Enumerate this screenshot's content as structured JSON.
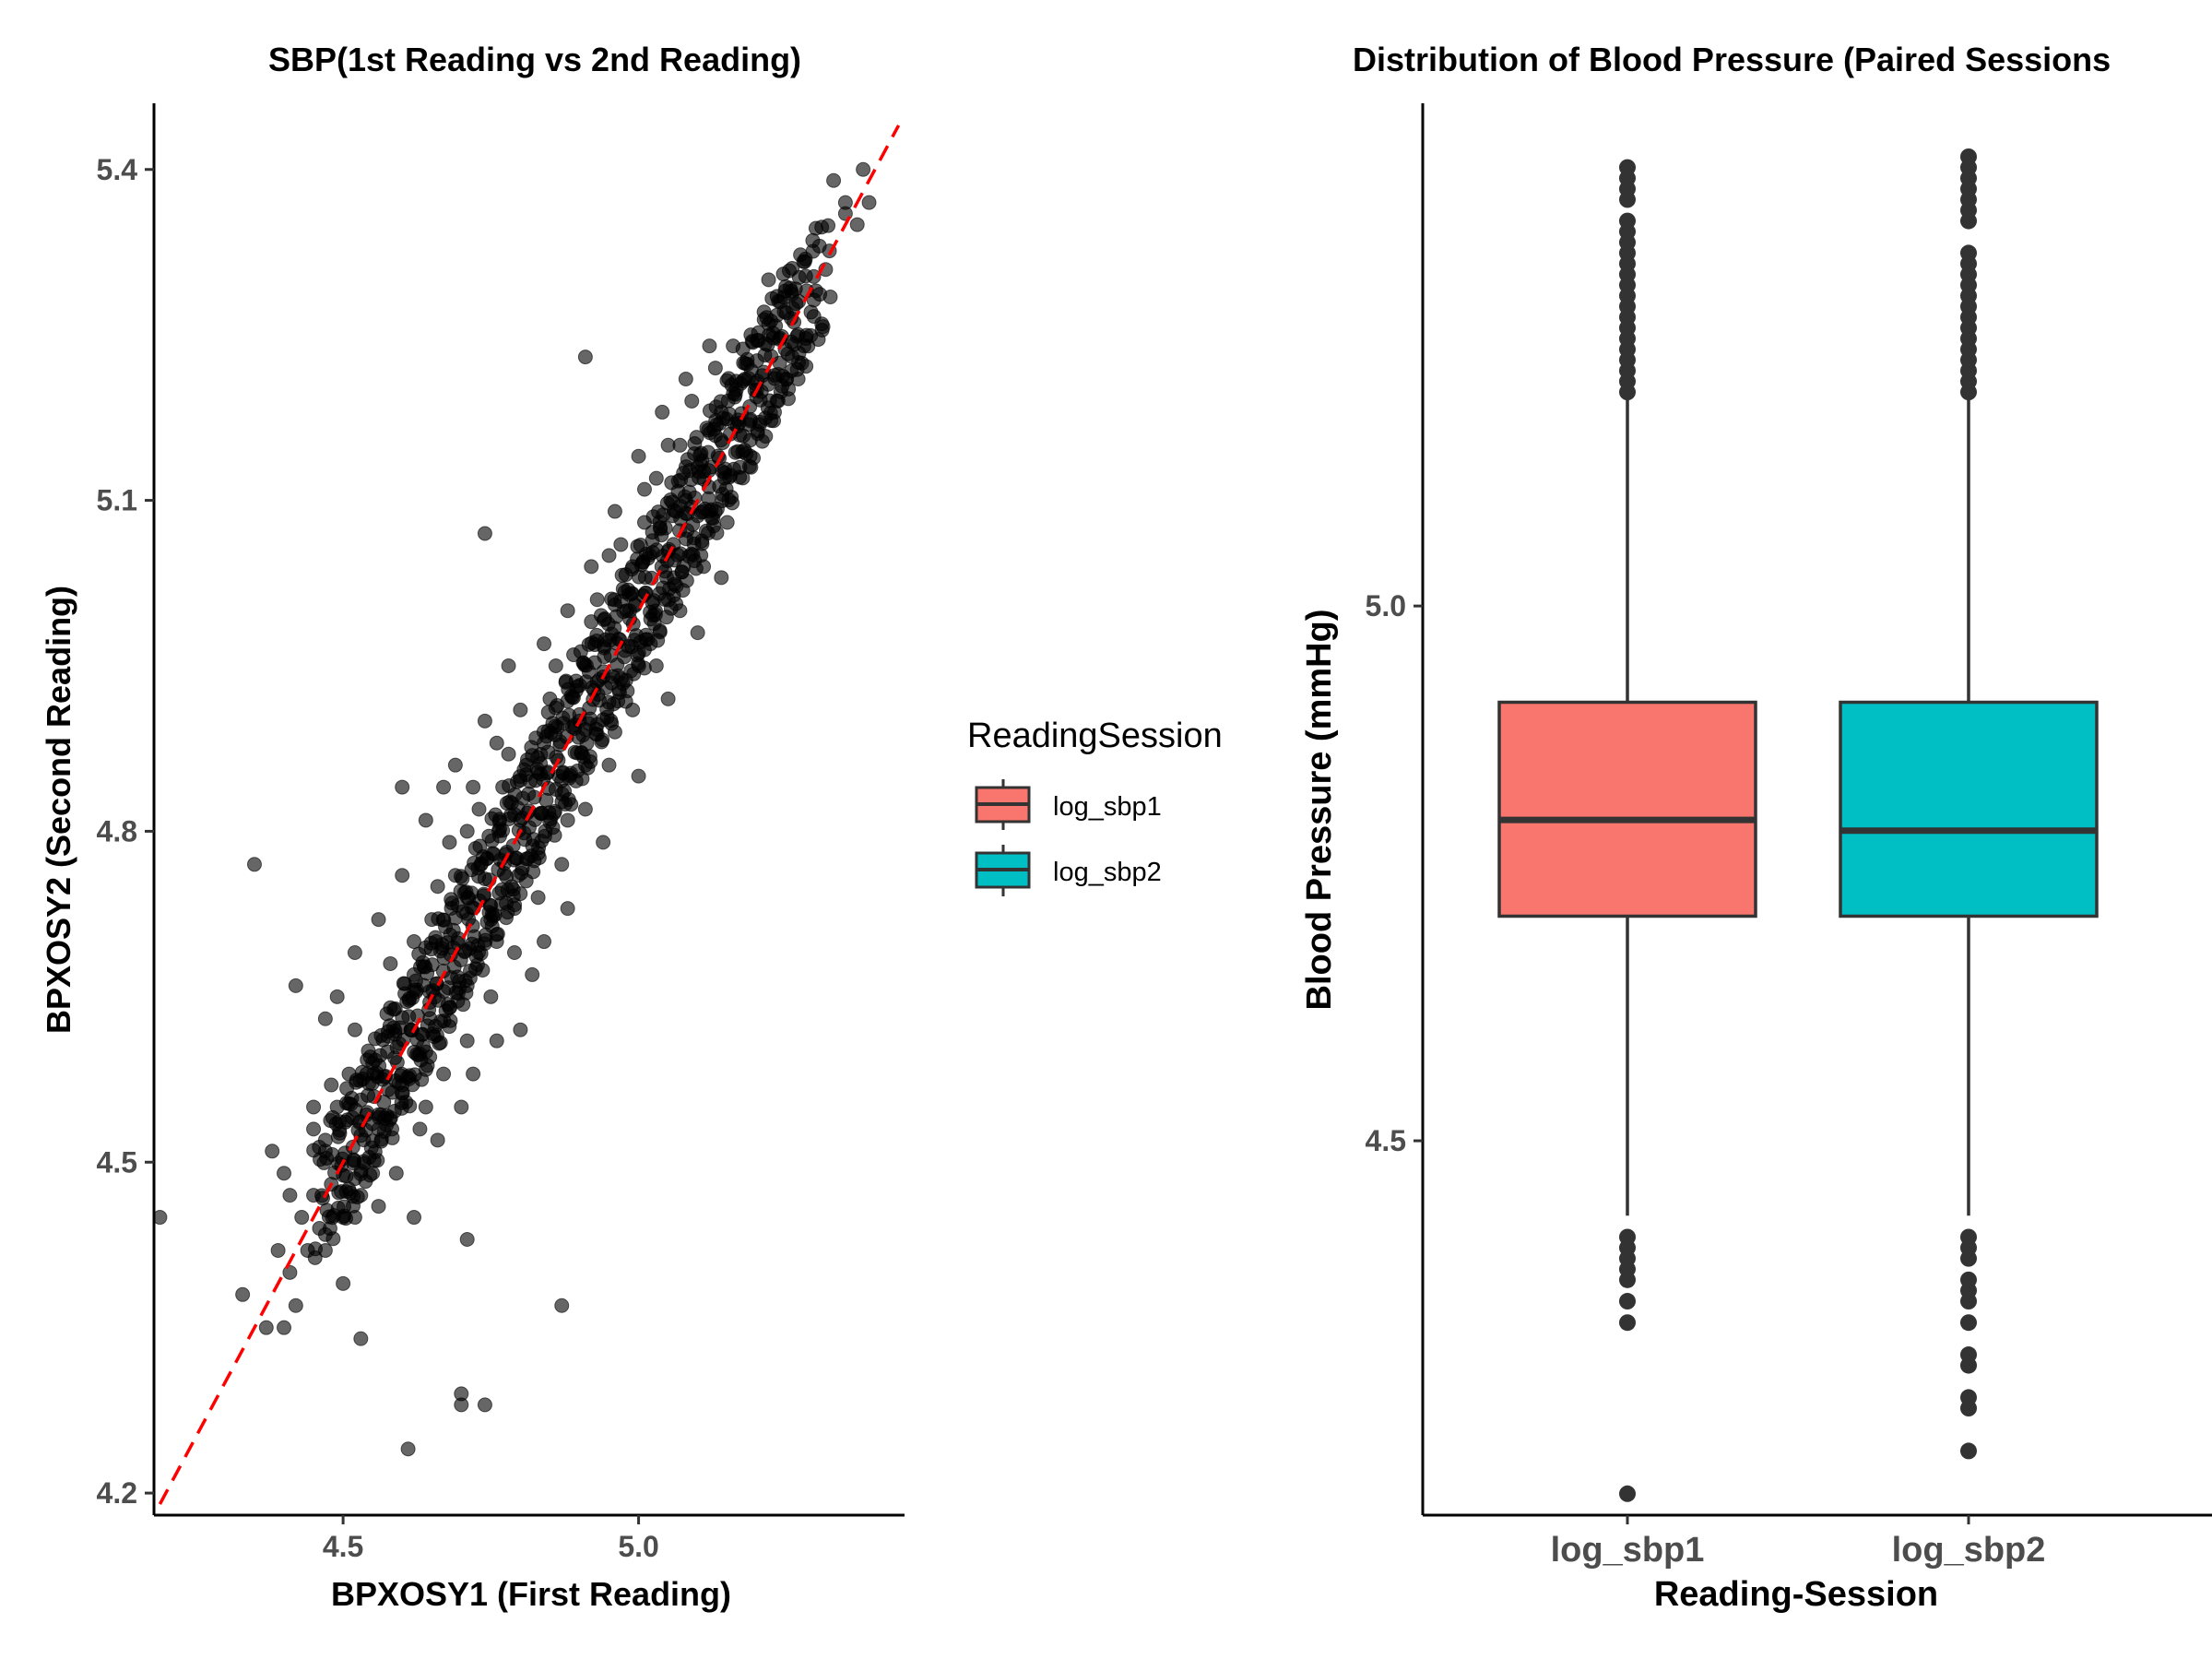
{
  "chart_data": [
    {
      "type": "scatter",
      "title": "SBP(1st Reading vs 2nd Reading)",
      "xlabel": "BPXOSY1 (First Reading)",
      "ylabel": "BPXOSY2 (Second Reading)",
      "xlim": [
        4.18,
        5.45
      ],
      "ylim": [
        4.18,
        5.46
      ],
      "x_ticks": [
        4.5,
        5.0
      ],
      "x_tick_labels": [
        "4.5",
        "5.0"
      ],
      "y_ticks": [
        4.2,
        4.5,
        4.8,
        5.1,
        5.4
      ],
      "y_tick_labels": [
        "4.2",
        "4.5",
        "4.8",
        "5.1",
        "5.4"
      ],
      "grid": false,
      "reference_line": {
        "style": "dashed",
        "color": "#ff0000",
        "slope": 1,
        "intercept": 0
      },
      "point_color": "#000000",
      "point_opacity": 0.6,
      "points": [
        [
          4.19,
          4.45
        ],
        [
          4.35,
          4.77
        ],
        [
          4.42,
          4.66
        ],
        [
          4.53,
          4.34
        ],
        [
          4.61,
          4.24
        ],
        [
          4.7,
          4.28
        ],
        [
          4.7,
          4.29
        ],
        [
          4.74,
          4.28
        ],
        [
          4.71,
          4.43
        ],
        [
          4.87,
          4.37
        ],
        [
          4.74,
          5.07
        ],
        [
          4.91,
          5.23
        ],
        [
          4.38,
          4.51
        ],
        [
          4.33,
          4.38
        ],
        [
          4.4,
          4.35
        ],
        [
          4.37,
          4.35
        ],
        [
          4.5,
          4.39
        ],
        [
          4.45,
          4.47
        ],
        [
          4.42,
          4.37
        ],
        [
          4.6,
          4.84
        ],
        [
          4.67,
          4.84
        ],
        [
          5.06,
          5.03
        ],
        [
          5.08,
          5.1
        ],
        [
          5.17,
          5.17
        ],
        [
          5.2,
          5.2
        ],
        [
          5.26,
          5.23
        ],
        [
          5.3,
          5.29
        ],
        [
          5.33,
          5.39
        ],
        [
          5.35,
          5.36
        ],
        [
          5.38,
          5.4
        ],
        [
          5.39,
          5.37
        ],
        [
          5.37,
          5.35
        ],
        [
          5.35,
          5.37
        ],
        [
          5.31,
          5.26
        ],
        [
          5.22,
          5.26
        ],
        [
          5.25,
          5.27
        ],
        [
          4.96,
          4.89
        ],
        [
          4.84,
          4.7
        ],
        [
          4.8,
          4.62
        ],
        [
          4.72,
          4.58
        ],
        [
          4.64,
          4.55
        ],
        [
          4.56,
          4.53
        ],
        [
          4.9,
          4.9
        ],
        [
          4.92,
          4.99
        ],
        [
          4.98,
          5.0
        ],
        [
          5.02,
          4.97
        ],
        [
          5.01,
          5.08
        ],
        [
          4.95,
          5.05
        ],
        [
          4.84,
          4.88
        ],
        [
          4.86,
          4.95
        ],
        [
          4.78,
          4.87
        ],
        [
          4.71,
          4.8
        ],
        [
          4.66,
          4.75
        ],
        [
          4.62,
          4.7
        ],
        [
          4.58,
          4.68
        ],
        [
          4.55,
          4.59
        ],
        [
          4.52,
          4.62
        ],
        [
          4.49,
          4.55
        ],
        [
          4.47,
          4.51
        ],
        [
          4.45,
          4.53
        ],
        [
          5.1,
          5.13
        ],
        [
          5.14,
          5.18
        ],
        [
          5.18,
          5.21
        ],
        [
          5.12,
          5.09
        ],
        [
          5.07,
          5.15
        ],
        [
          5.03,
          5.12
        ],
        [
          4.99,
          5.04
        ],
        [
          4.94,
          4.94
        ],
        [
          4.91,
          4.86
        ],
        [
          4.88,
          4.81
        ],
        [
          4.83,
          4.78
        ],
        [
          4.79,
          4.73
        ],
        [
          4.75,
          4.72
        ],
        [
          4.71,
          4.66
        ],
        [
          4.68,
          4.64
        ],
        [
          4.64,
          4.6
        ],
        [
          4.6,
          4.57
        ],
        [
          4.57,
          4.54
        ],
        [
          4.55,
          4.49
        ],
        [
          4.53,
          4.47
        ],
        [
          4.48,
          4.48
        ],
        [
          4.46,
          4.44
        ],
        [
          4.44,
          4.42
        ],
        [
          4.43,
          4.45
        ],
        [
          4.41,
          4.47
        ],
        [
          4.4,
          4.49
        ],
        [
          4.39,
          4.42
        ],
        [
          4.41,
          4.4
        ],
        [
          4.47,
          4.42
        ],
        [
          4.5,
          4.45
        ],
        [
          4.54,
          4.58
        ],
        [
          4.58,
          4.64
        ],
        [
          4.62,
          4.67
        ],
        [
          4.65,
          4.72
        ],
        [
          4.69,
          4.76
        ],
        [
          4.73,
          4.82
        ],
        [
          4.77,
          4.84
        ],
        [
          4.81,
          4.86
        ],
        [
          4.85,
          4.92
        ],
        [
          4.89,
          4.96
        ],
        [
          4.93,
          5.01
        ],
        [
          4.97,
          5.06
        ],
        [
          5.01,
          5.11
        ],
        [
          5.05,
          5.15
        ],
        [
          5.09,
          5.19
        ],
        [
          5.13,
          5.22
        ],
        [
          5.16,
          5.24
        ],
        [
          5.19,
          5.25
        ],
        [
          5.22,
          5.3
        ],
        [
          5.24,
          5.28
        ],
        [
          5.28,
          5.24
        ],
        [
          5.27,
          5.21
        ],
        [
          5.23,
          5.18
        ],
        [
          5.19,
          5.13
        ],
        [
          5.15,
          5.08
        ],
        [
          5.11,
          5.04
        ],
        [
          5.07,
          5.0
        ],
        [
          5.03,
          4.95
        ],
        [
          4.99,
          4.91
        ],
        [
          4.95,
          4.86
        ],
        [
          4.91,
          4.82
        ],
        [
          4.87,
          4.77
        ],
        [
          4.83,
          4.74
        ],
        [
          4.79,
          4.69
        ],
        [
          4.75,
          4.65
        ],
        [
          4.71,
          4.61
        ],
        [
          4.67,
          4.58
        ],
        [
          4.63,
          4.53
        ],
        [
          4.59,
          4.49
        ],
        [
          4.56,
          4.46
        ],
        [
          4.52,
          4.45
        ],
        [
          4.62,
          4.45
        ],
        [
          4.66,
          4.52
        ],
        [
          4.7,
          4.55
        ],
        [
          4.76,
          4.61
        ],
        [
          4.82,
          4.67
        ],
        [
          4.88,
          4.73
        ],
        [
          4.94,
          4.79
        ],
        [
          5.0,
          4.85
        ],
        [
          5.05,
          4.92
        ],
        [
          5.1,
          4.98
        ],
        [
          5.14,
          5.03
        ],
        [
          4.78,
          4.95
        ],
        [
          4.74,
          4.9
        ],
        [
          4.69,
          4.86
        ],
        [
          4.64,
          4.81
        ],
        [
          4.6,
          4.76
        ],
        [
          4.56,
          4.72
        ],
        [
          4.52,
          4.69
        ],
        [
          4.49,
          4.65
        ],
        [
          4.47,
          4.63
        ],
        [
          4.51,
          4.58
        ],
        [
          4.48,
          4.57
        ],
        [
          4.45,
          4.55
        ],
        [
          5.0,
          5.14
        ],
        [
          5.04,
          5.18
        ],
        [
          5.08,
          5.21
        ],
        [
          5.12,
          5.24
        ],
        [
          4.96,
          5.09
        ],
        [
          4.92,
          5.04
        ],
        [
          4.88,
          5.0
        ],
        [
          4.84,
          4.97
        ],
        [
          4.8,
          4.91
        ],
        [
          4.76,
          4.88
        ],
        [
          4.72,
          4.84
        ],
        [
          4.68,
          4.79
        ]
      ]
    },
    {
      "type": "boxplot",
      "title": "Distribution of Blood Pressure (Paired Sessions",
      "xlabel": "Reading-Session",
      "ylabel": "Blood Pressure (mmHg)",
      "categories": [
        "log_sbp1",
        "log_sbp2"
      ],
      "ylim": [
        4.15,
        5.47
      ],
      "y_ticks": [
        4.5,
        5.0
      ],
      "y_tick_labels": [
        "4.5",
        "5.0"
      ],
      "grid": false,
      "legend": {
        "title": "ReadingSession",
        "placement": "middle, between panels",
        "entries": [
          {
            "label": "log_sbp1",
            "color": "#f8766d"
          },
          {
            "label": "log_sbp2",
            "color": "#00bfc4"
          }
        ]
      },
      "series": [
        {
          "name": "log_sbp1",
          "color": "#f8766d",
          "whisker_low": 4.43,
          "q1": 4.71,
          "median": 4.8,
          "q3": 4.91,
          "whisker_high": 5.2,
          "outliers": [
            4.17,
            4.33,
            4.35,
            4.37,
            4.38,
            4.39,
            4.4,
            4.41,
            5.2,
            5.21,
            5.22,
            5.23,
            5.24,
            5.25,
            5.26,
            5.27,
            5.28,
            5.29,
            5.3,
            5.31,
            5.32,
            5.33,
            5.34,
            5.35,
            5.36,
            5.38,
            5.39,
            5.4,
            5.41
          ]
        },
        {
          "name": "log_sbp2",
          "color": "#00bfc4",
          "whisker_low": 4.43,
          "q1": 4.71,
          "median": 4.79,
          "q3": 4.91,
          "whisker_high": 5.2,
          "outliers": [
            4.21,
            4.25,
            4.26,
            4.29,
            4.3,
            4.33,
            4.35,
            4.36,
            4.37,
            4.39,
            4.4,
            4.41,
            5.2,
            5.21,
            5.22,
            5.23,
            5.24,
            5.25,
            5.26,
            5.27,
            5.28,
            5.29,
            5.3,
            5.31,
            5.32,
            5.33,
            5.36,
            5.37,
            5.38,
            5.39,
            5.4,
            5.41,
            5.42
          ]
        }
      ]
    }
  ]
}
